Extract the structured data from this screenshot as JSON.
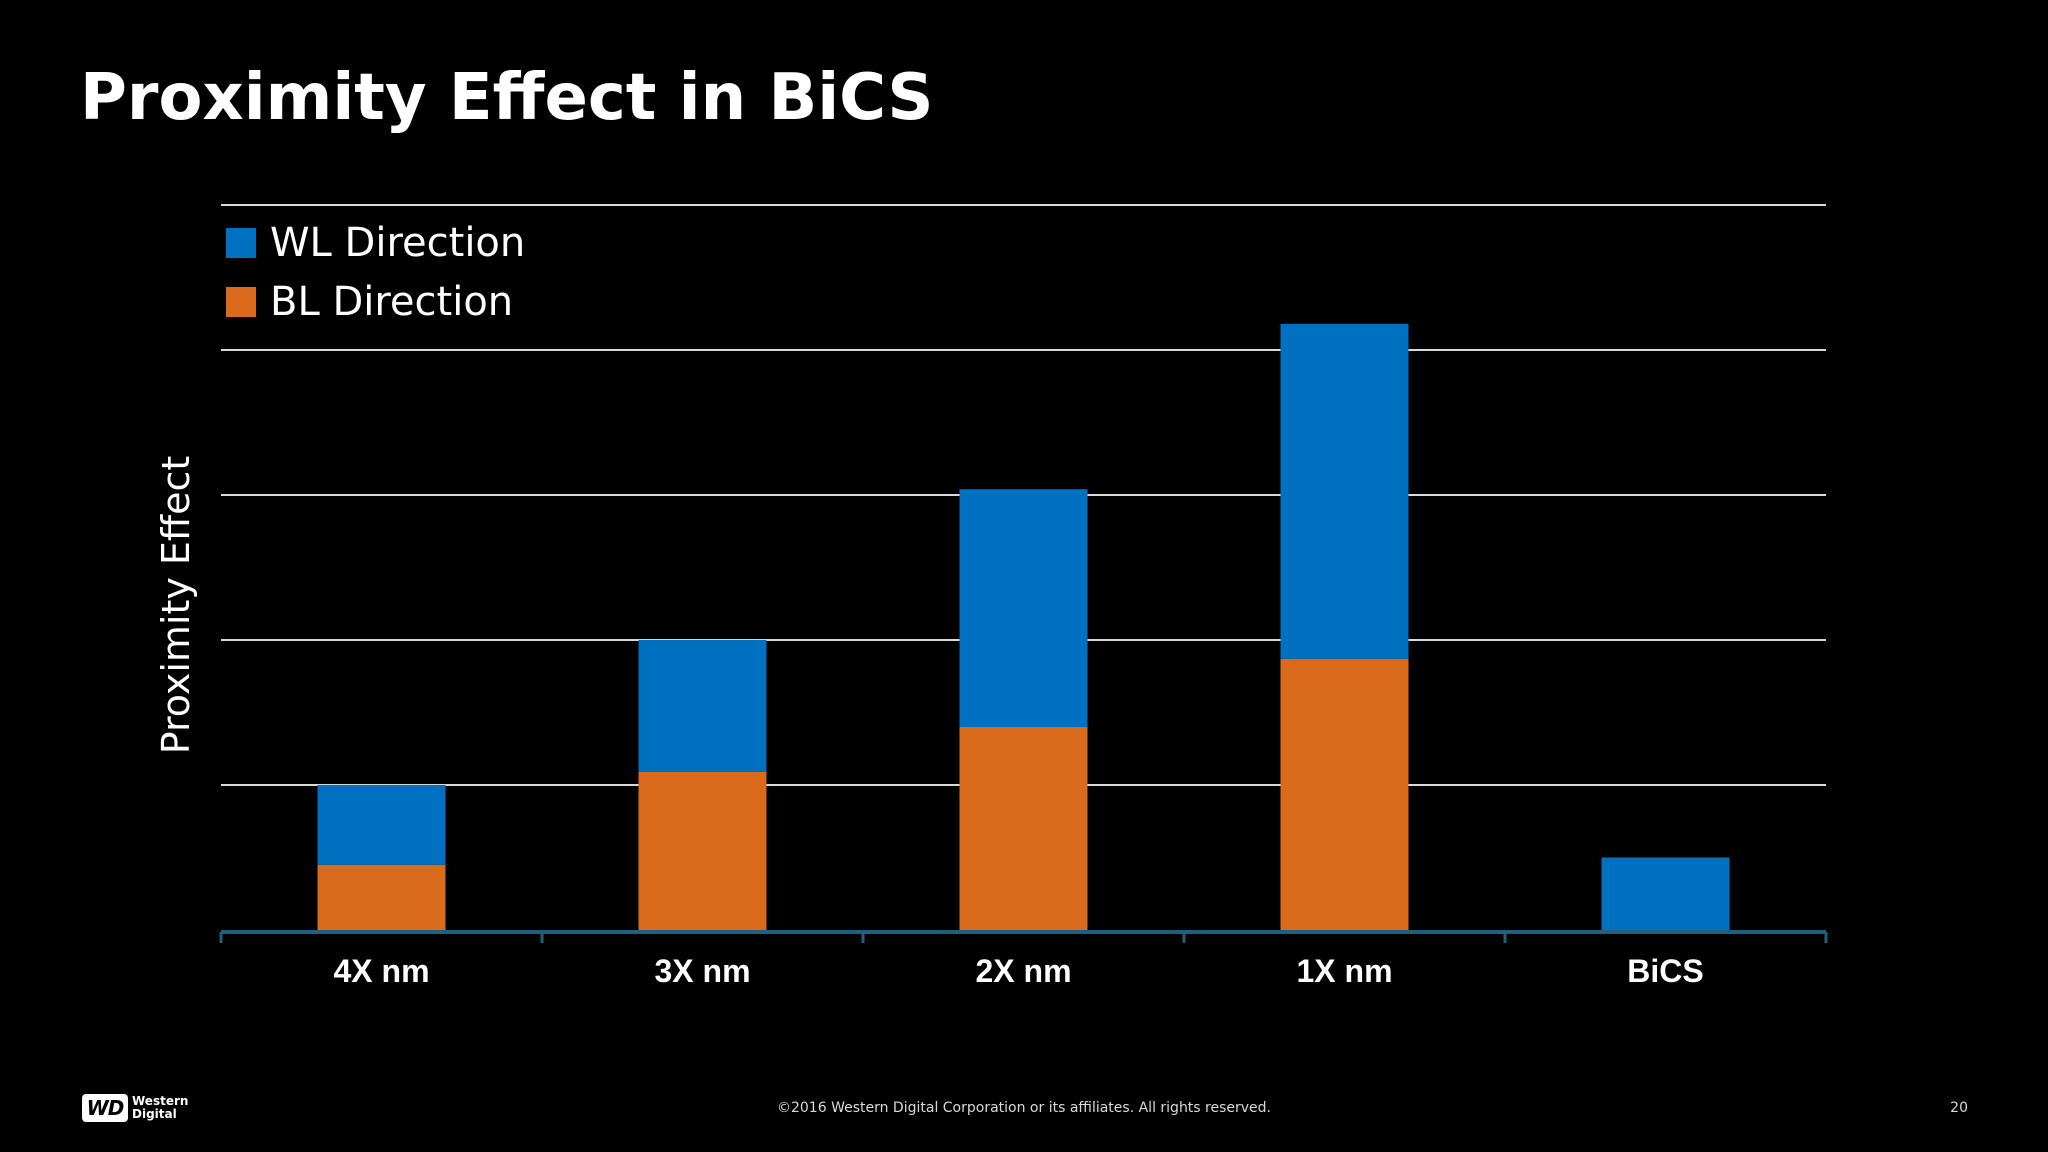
{
  "slide": {
    "title": "Proximity Effect in BiCS",
    "copyright": "©2016  Western Digital Corporation  or its affiliates.  All rights reserved.",
    "page_number": "20"
  },
  "logo": {
    "mark": "WD",
    "line1": "Western",
    "line2": "Digital"
  },
  "colors": {
    "background": "#000000",
    "wl": "#0070c0",
    "bl": "#da6a1c",
    "grid": "#d9d9d9",
    "axis": "#1f5f80"
  },
  "chart_data": {
    "type": "bar",
    "stacked": true,
    "title": "",
    "xlabel": "",
    "ylabel": "Proximity Effect",
    "categories": [
      "4X nm",
      "3X nm",
      "2X nm",
      "1X nm",
      "BiCS"
    ],
    "series": [
      {
        "name": "BL Direction",
        "color": "#da6a1c",
        "values": [
          0.45,
          1.09,
          1.4,
          1.87,
          0
        ]
      },
      {
        "name": "WL Direction",
        "color": "#0070c0",
        "values": [
          0.55,
          0.91,
          1.64,
          2.31,
          0.5
        ]
      }
    ],
    "legend_order": [
      "WL Direction",
      "BL Direction"
    ],
    "legend_position": "top-left",
    "ylim": [
      0,
      5
    ],
    "y_gridlines": [
      1,
      2,
      3,
      4,
      5
    ],
    "y_tick_labels_shown": false,
    "grid": true
  }
}
